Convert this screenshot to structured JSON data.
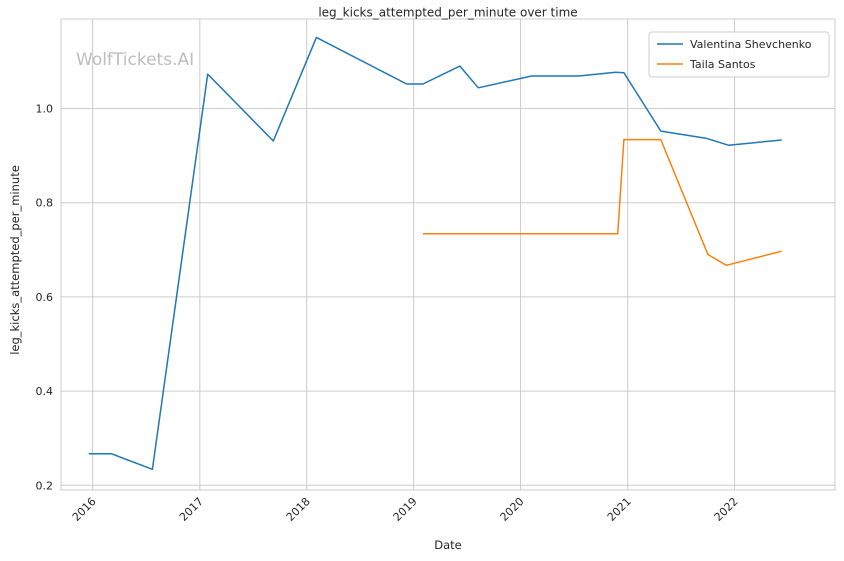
{
  "chart_data": {
    "type": "line",
    "title": "leg_kicks_attempted_per_minute over time",
    "xlabel": "Date",
    "ylabel": "leg_kicks_attempted_per_minute",
    "watermark": "WolfTickets.AI",
    "xlim": [
      "2015-09-15",
      "2022-12-10"
    ],
    "ylim": [
      0.19,
      1.19
    ],
    "x_ticks": [
      "2016-01-01",
      "2017-01-01",
      "2018-01-01",
      "2019-01-01",
      "2020-01-01",
      "2021-01-01",
      "2022-01-01"
    ],
    "x_tick_labels": [
      "2016",
      "2017",
      "2018",
      "2019",
      "2020",
      "2021",
      "2022"
    ],
    "y_ticks": [
      0.2,
      0.4,
      0.6,
      0.8,
      1.0
    ],
    "y_tick_labels": [
      "0.2",
      "0.4",
      "0.6",
      "0.8",
      "1.0"
    ],
    "grid": true,
    "legend_position": "top-right",
    "series": [
      {
        "name": "Valentina Shevchenko",
        "color": "#1f77b4",
        "points": [
          {
            "x": "2015-12-19",
            "y": 0.267
          },
          {
            "x": "2016-03-05",
            "y": 0.267
          },
          {
            "x": "2016-07-23",
            "y": 0.234
          },
          {
            "x": "2017-01-28",
            "y": 1.073
          },
          {
            "x": "2017-09-09",
            "y": 0.931
          },
          {
            "x": "2018-02-03",
            "y": 1.151
          },
          {
            "x": "2018-12-08",
            "y": 1.052
          },
          {
            "x": "2019-02-02",
            "y": 1.052
          },
          {
            "x": "2019-06-08",
            "y": 1.09
          },
          {
            "x": "2019-08-10",
            "y": 1.044
          },
          {
            "x": "2020-02-08",
            "y": 1.069
          },
          {
            "x": "2020-07-18",
            "y": 1.069
          },
          {
            "x": "2020-11-21",
            "y": 1.077
          },
          {
            "x": "2020-12-19",
            "y": 1.076
          },
          {
            "x": "2021-04-24",
            "y": 0.952
          },
          {
            "x": "2021-09-25",
            "y": 0.937
          },
          {
            "x": "2021-12-11",
            "y": 0.922
          },
          {
            "x": "2022-06-11",
            "y": 0.933
          }
        ]
      },
      {
        "name": "Taila Santos",
        "color": "#ff7f0e",
        "points": [
          {
            "x": "2019-02-02",
            "y": 0.734
          },
          {
            "x": "2020-11-28",
            "y": 0.734
          },
          {
            "x": "2020-12-19",
            "y": 0.934
          },
          {
            "x": "2021-04-24",
            "y": 0.934
          },
          {
            "x": "2021-10-02",
            "y": 0.69
          },
          {
            "x": "2021-12-04",
            "y": 0.667
          },
          {
            "x": "2022-06-11",
            "y": 0.697
          }
        ]
      }
    ]
  }
}
